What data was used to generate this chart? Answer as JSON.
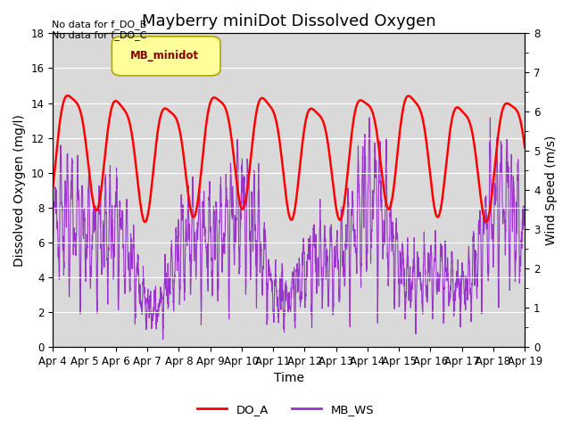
{
  "title": "Mayberry miniDot Dissolved Oxygen",
  "ylabel_left": "Dissolved Oxygen (mg/l)",
  "ylabel_right": "Wind Speed (m/s)",
  "xlabel": "Time",
  "ylim_left": [
    0,
    18
  ],
  "ylim_right": [
    0.0,
    8.0
  ],
  "yticks_left": [
    0,
    2,
    4,
    6,
    8,
    10,
    12,
    14,
    16,
    18
  ],
  "yticks_right": [
    0.0,
    1.0,
    2.0,
    3.0,
    4.0,
    5.0,
    6.0,
    7.0,
    8.0
  ],
  "xtick_labels": [
    "Apr 4",
    "Apr 5",
    "Apr 6",
    "Apr 7",
    "Apr 8",
    "Apr 9",
    "Apr 10",
    "Apr 11",
    "Apr 12",
    "Apr 13",
    "Apr 14",
    "Apr 15",
    "Apr 16",
    "Apr 17",
    "Apr 18",
    "Apr 19"
  ],
  "legend_label_minidot": "MB_minidot",
  "legend_label_DO": "DO_A",
  "legend_label_WS": "MB_WS",
  "annotation1": "No data for f_DO_B",
  "annotation2": "No data for f_DO_C",
  "color_DO": "#ff0000",
  "color_WS": "#9933cc",
  "background_color": "#d9d9d9",
  "legend_box_facecolor": "#ffff99",
  "legend_box_edgecolor": "#aaaa00",
  "title_fontsize": 13,
  "axis_label_fontsize": 10,
  "tick_fontsize": 8.5
}
